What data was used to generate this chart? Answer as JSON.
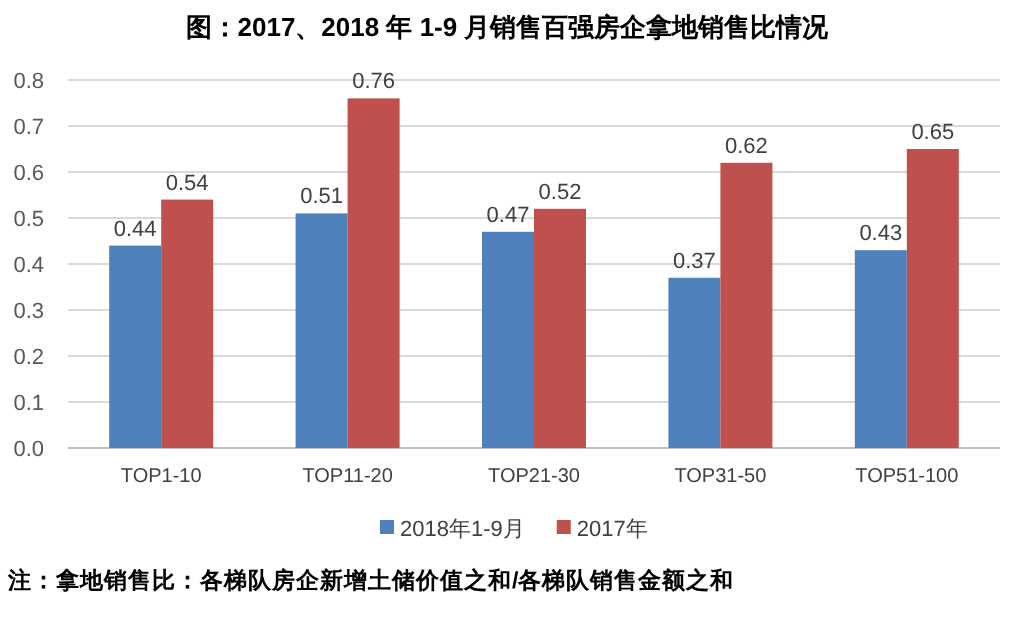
{
  "chart_data": {
    "type": "bar",
    "title": "图：2017、2018 年 1-9 月销售百强房企拿地销售比情况",
    "categories": [
      "TOP1-10",
      "TOP11-20",
      "TOP21-30",
      "TOP31-50",
      "TOP51-100"
    ],
    "series": [
      {
        "name": "2018年1-9月",
        "color": "#4f81bd",
        "values": [
          0.44,
          0.51,
          0.47,
          0.37,
          0.43
        ]
      },
      {
        "name": "2017年",
        "color": "#c0504d",
        "values": [
          0.54,
          0.76,
          0.52,
          0.62,
          0.65
        ]
      }
    ],
    "ylim": [
      0,
      0.8
    ],
    "yticks": [
      {
        "value": 0,
        "label": "0.0"
      },
      0.1,
      0.2,
      0.3,
      0.4,
      0.5,
      0.6,
      0.7,
      0.8
    ],
    "grid": "y",
    "legend": "bottom",
    "data_labels": true,
    "annotations": [
      "注：拿地销售比：各梯队房企新增土储价值之和/各梯队销售金额之和"
    ]
  }
}
